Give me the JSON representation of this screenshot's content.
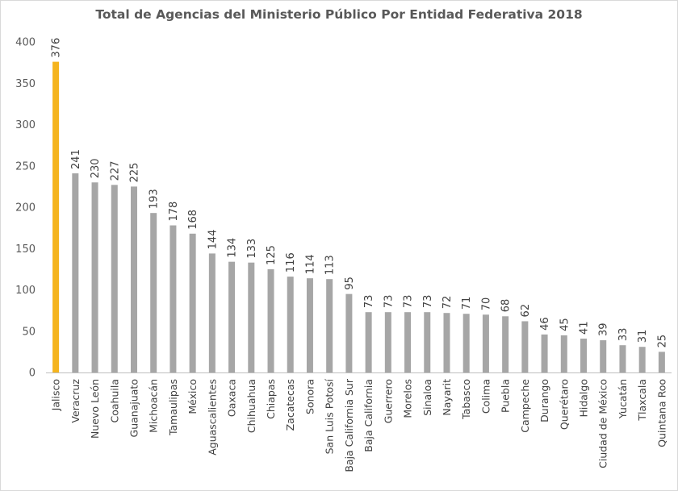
{
  "chart_data": {
    "type": "bar",
    "title": "Total de Agencias del Ministerio Público Por Entidad Federativa 2018",
    "xlabel": "",
    "ylabel": "",
    "ylim": [
      0,
      400
    ],
    "yticks": [
      0,
      50,
      100,
      150,
      200,
      250,
      300,
      350,
      400
    ],
    "grid": false,
    "legend": "none",
    "colors": {
      "default": "#a6a6a6",
      "highlight": "#f5b41d",
      "axis": "#bfbfbf"
    },
    "highlight_category": "Jalisco",
    "categories": [
      "Jalisco",
      "Veracruz",
      "Nuevo León",
      "Coahuila",
      "Guanajuato",
      "Michoacán",
      "Tamaulipas",
      "México",
      "Aguascalientes",
      "Oaxaca",
      "Chihuahua",
      "Chiapas",
      "Zacatecas",
      "Sonora",
      "San Luis Potosí",
      "Baja California Sur",
      "Baja California",
      "Guerrero",
      "Morelos",
      "Sinaloa",
      "Nayarit",
      "Tabasco",
      "Colima",
      "Puebla",
      "Campeche",
      "Durango",
      "Querétaro",
      "Hidalgo",
      "Ciudad de México",
      "Yucatán",
      "Tlaxcala",
      "Quintana Roo"
    ],
    "values": [
      376,
      241,
      230,
      227,
      225,
      193,
      178,
      168,
      144,
      134,
      133,
      125,
      116,
      114,
      113,
      95,
      73,
      73,
      73,
      73,
      72,
      71,
      70,
      68,
      62,
      46,
      45,
      41,
      39,
      33,
      31,
      25
    ]
  }
}
